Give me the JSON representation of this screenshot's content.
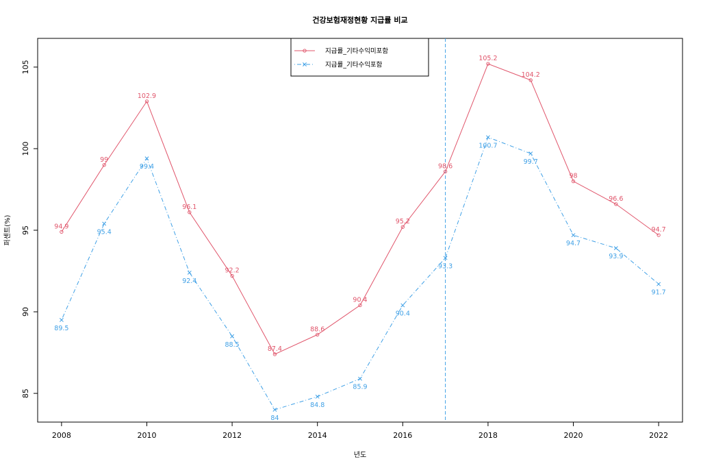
{
  "chart_data": {
    "type": "line",
    "title": "건강보험재정현황 지급률 비교",
    "xlabel": "년도",
    "ylabel": "퍼센트(%)",
    "x": [
      2008,
      2009,
      2010,
      2011,
      2012,
      2013,
      2014,
      2015,
      2016,
      2017,
      2018,
      2019,
      2020,
      2021,
      2022
    ],
    "xticks": [
      2008,
      2010,
      2012,
      2014,
      2016,
      2018,
      2020,
      2022
    ],
    "yticks": [
      85,
      90,
      95,
      100,
      105
    ],
    "xlim": [
      2007.44,
      2022.56
    ],
    "ylim": [
      83.24,
      106.76
    ],
    "grid": false,
    "legend_position": "top-center",
    "vline_x": 2017,
    "vline_color": "#3fa0e6",
    "series": [
      {
        "name": "지급률_기타수익미포함",
        "color": "#e0546a",
        "marker": "circle",
        "line_style": "solid",
        "values": [
          94.9,
          99,
          102.9,
          96.1,
          92.2,
          87.4,
          88.6,
          90.4,
          95.2,
          98.6,
          105.2,
          104.2,
          98,
          96.6,
          94.7
        ],
        "labels": [
          "94.9",
          "99",
          "102.9",
          "96.1",
          "92.2",
          "87.4",
          "88.6",
          "90.4",
          "95.2",
          "98.6",
          "105.2",
          "104.2",
          "98",
          "96.6",
          "94.7"
        ]
      },
      {
        "name": "지급률_기타수익포함",
        "color": "#3fa0e6",
        "marker": "cross",
        "line_style": "dotdash",
        "values": [
          89.5,
          95.4,
          99.4,
          92.4,
          88.5,
          84,
          84.8,
          85.9,
          90.4,
          93.3,
          100.7,
          99.7,
          94.7,
          93.9,
          91.7
        ],
        "labels": [
          "89.5",
          "95.4",
          "99.4",
          "92.4",
          "88.5",
          "84",
          "84.8",
          "85.9",
          "90.4",
          "93.3",
          "100.7",
          "99.7",
          "94.7",
          "93.9",
          "91.7"
        ]
      }
    ]
  }
}
